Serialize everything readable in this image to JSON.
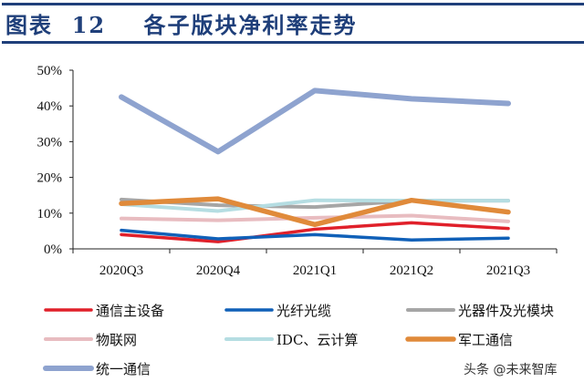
{
  "header": {
    "title": "图表  12    各子版块净利率走势"
  },
  "watermark": "头条 @未来智库",
  "chart_data": {
    "type": "line",
    "title": "",
    "xlabel": "",
    "ylabel": "",
    "categories": [
      "2020Q3",
      "2020Q4",
      "2021Q1",
      "2021Q2",
      "2021Q3"
    ],
    "ylim": [
      0,
      50
    ],
    "yticks": [
      "0%",
      "10%",
      "20%",
      "30%",
      "40%",
      "50%"
    ],
    "grid": false,
    "legend_position": "bottom",
    "series": [
      {
        "name": "通信主设备",
        "color": "#e0202a",
        "width": 3.5,
        "values": [
          4.0,
          2.0,
          5.5,
          7.3,
          5.7
        ]
      },
      {
        "name": "光纤光缆",
        "color": "#1060b8",
        "width": 3.5,
        "values": [
          5.2,
          2.8,
          4.0,
          2.5,
          3.0
        ]
      },
      {
        "name": "光器件及光模块",
        "color": "#a6a6a6",
        "width": 4,
        "values": [
          13.8,
          12.2,
          11.7,
          13.5,
          13.5
        ]
      },
      {
        "name": "物联网",
        "color": "#e8bcc0",
        "width": 4,
        "values": [
          8.5,
          8.0,
          8.7,
          9.3,
          7.7
        ]
      },
      {
        "name": "IDC、云计算",
        "color": "#b5dde2",
        "width": 4,
        "values": [
          12.5,
          10.6,
          13.6,
          13.5,
          13.5
        ]
      },
      {
        "name": "军工通信",
        "color": "#e08a3a",
        "width": 5.5,
        "values": [
          12.7,
          14.0,
          6.8,
          13.6,
          10.3
        ]
      },
      {
        "name": "统一通信",
        "color": "#8ea3cf",
        "width": 6,
        "values": [
          42.5,
          27.2,
          44.3,
          42.0,
          40.7
        ]
      }
    ]
  }
}
